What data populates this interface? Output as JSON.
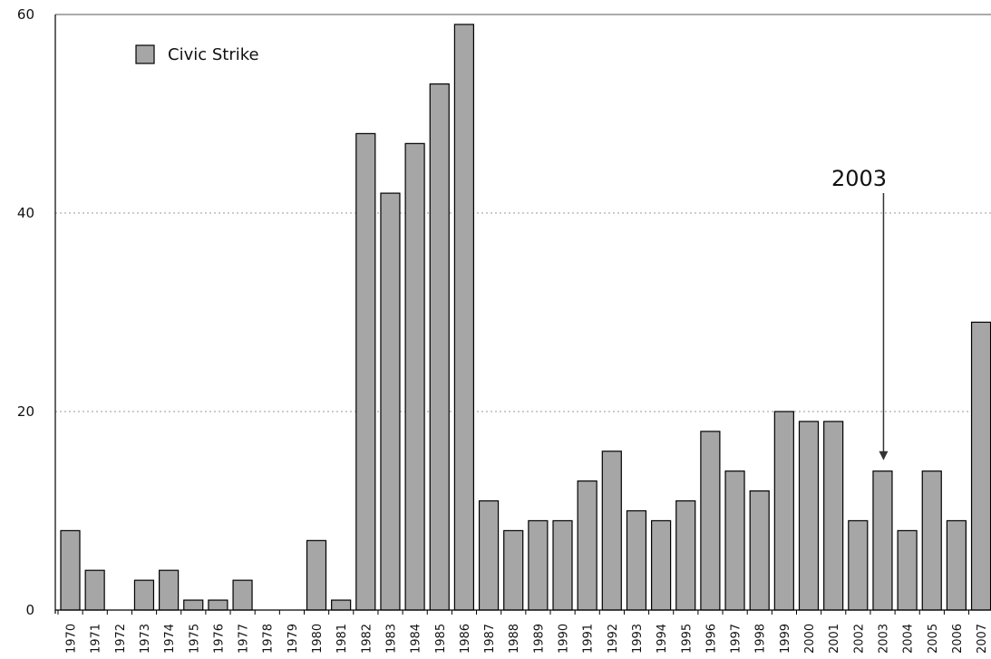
{
  "chart_data": {
    "type": "bar",
    "title": "",
    "xlabel": "",
    "ylabel": "",
    "ylim": [
      0,
      60
    ],
    "yticks": [
      0,
      20,
      40,
      60
    ],
    "grid": "horizontal dotted",
    "legend_position": "top-left",
    "categories": [
      "1970",
      "1971",
      "1972",
      "1973",
      "1974",
      "1975",
      "1976",
      "1977",
      "1978",
      "1979",
      "1980",
      "1981",
      "1982",
      "1983",
      "1984",
      "1985",
      "1986",
      "1987",
      "1988",
      "1989",
      "1990",
      "1991",
      "1992",
      "1993",
      "1994",
      "1995",
      "1996",
      "1997",
      "1998",
      "1999",
      "2000",
      "2001",
      "2002",
      "2003",
      "2004",
      "2005",
      "2006",
      "2007"
    ],
    "series": [
      {
        "name": "Civic Strike",
        "color": "#a6a6a6",
        "values": [
          8,
          4,
          0,
          3,
          4,
          1,
          1,
          3,
          0,
          0,
          7,
          1,
          48,
          42,
          47,
          53,
          59,
          11,
          8,
          9,
          9,
          13,
          16,
          10,
          9,
          11,
          18,
          14,
          12,
          20,
          19,
          19,
          9,
          14,
          8,
          14,
          9,
          29
        ]
      }
    ],
    "annotations": [
      {
        "text": "2003",
        "category": "2003",
        "arrow": "down"
      }
    ]
  }
}
